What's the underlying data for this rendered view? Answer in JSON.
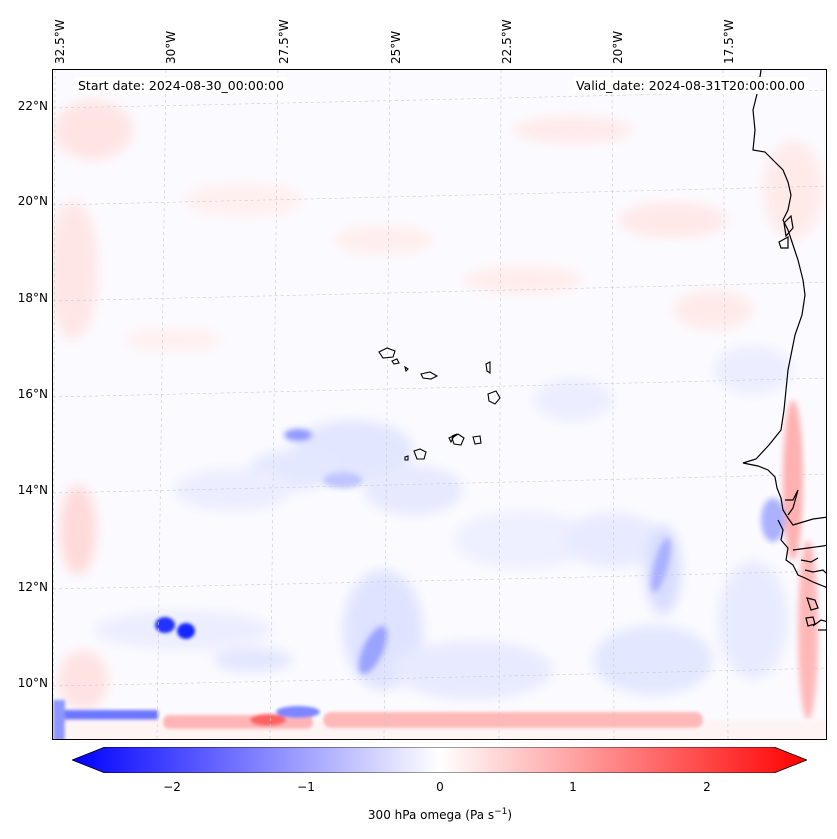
{
  "map": {
    "start_date": "Start date: 2024-08-30_00:00:00",
    "valid_date": "Valid_date: 2024-08-31T20:00:00.00",
    "lon_labels": [
      "32.5°W",
      "30°W",
      "27.5°W",
      "25°W",
      "22.5°W",
      "20°W",
      "17.5°W"
    ],
    "lat_labels": [
      "22°N",
      "20°N",
      "18°N",
      "16°N",
      "14°N",
      "12°N",
      "10°N"
    ],
    "extent": {
      "lon_min": -32.6,
      "lon_max": -15.6,
      "lat_min": 8.9,
      "lat_max": 22.8
    },
    "colors": {
      "negative": "#0000ff",
      "zero": "#ffffff",
      "positive": "#ff0000",
      "coast": "#000000",
      "grid": "#c8c8c8"
    }
  },
  "colorbar": {
    "label": "300 hPa omega (Pa s",
    "label_exp": "−1",
    "label_close": ")",
    "ticks": [
      "−2",
      "−1",
      "0",
      "1",
      "2"
    ],
    "range": [
      -2.6,
      2.6
    ]
  },
  "chart_data": {
    "type": "heatmap",
    "title": "300 hPa omega",
    "variable": "omega at 300 hPa",
    "units": "Pa s^-1",
    "vmin": -2.6,
    "vmax": 2.6,
    "colormap": "bwr",
    "features": [
      {
        "name": "strong ascent cluster",
        "lon": -30.1,
        "lat": 11.2,
        "value": -2.3
      },
      {
        "name": "ascent band south edge",
        "lon": -31.2,
        "lat": 9.4,
        "value": -1.2
      },
      {
        "name": "subsidence band south edge",
        "lon": -23.5,
        "lat": 9.3,
        "value": 1.0
      },
      {
        "name": "subsidence along African coast",
        "lon": -16.0,
        "lat": 15.0,
        "value": 0.9
      },
      {
        "name": "ascent band central",
        "lon": -25.5,
        "lat": 11.2,
        "value": -0.9
      },
      {
        "name": "ascent near Cape Verde",
        "lon": -27.2,
        "lat": 14.8,
        "value": -0.8
      }
    ]
  }
}
